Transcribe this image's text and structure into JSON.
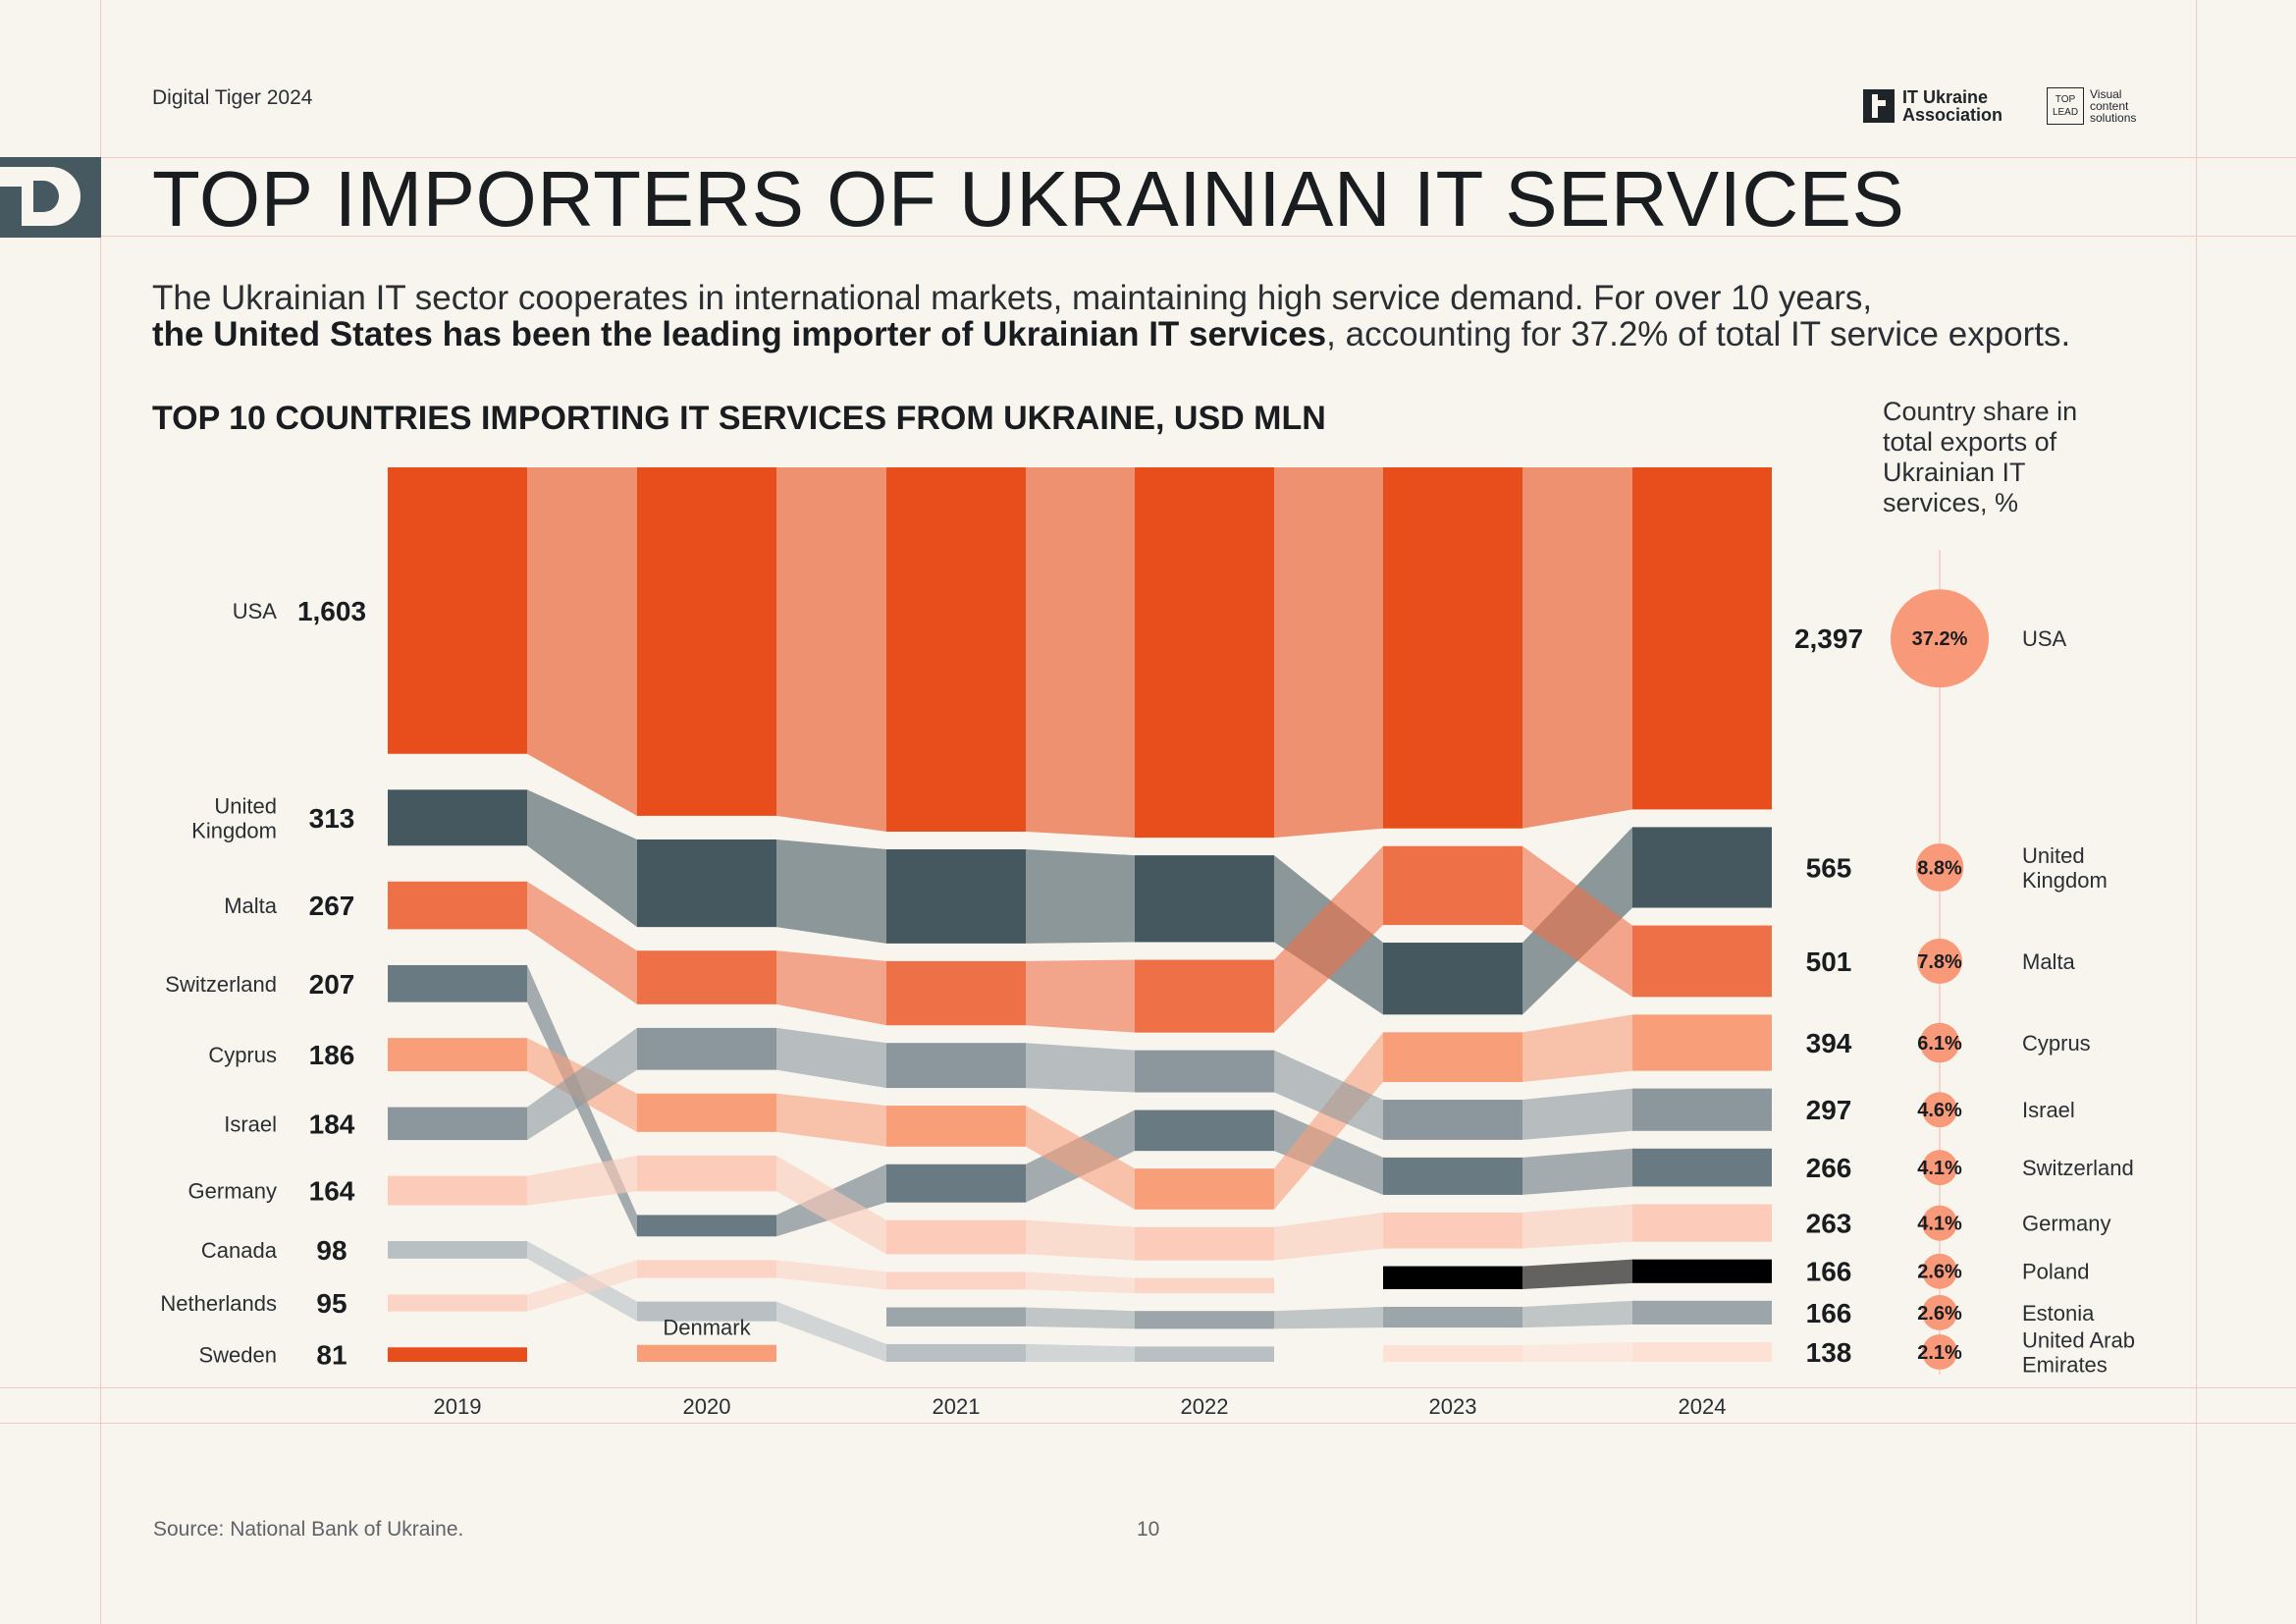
{
  "header": {
    "left_text": "Digital Tiger 2024",
    "itua_line1": "IT Ukraine",
    "itua_line2": "Association",
    "top_line1": "TOP",
    "top_line2": "LEAD",
    "top_desc1": "Visual",
    "top_desc2": "content",
    "top_desc3": "solutions"
  },
  "title": "TOP IMPORTERS OF UKRAINIAN IT SERVICES",
  "intro": {
    "line1": "The Ukrainian IT sector cooperates in international markets, maintaining high service demand. For over 10 years,",
    "bold": "the United States has been the leading importer of Ukrainian IT services",
    "tail": ", accounting for 37.2% of total IT service exports."
  },
  "footer": {
    "source": "Source: National Bank of Ukraine.",
    "page": "10"
  },
  "colors": {
    "usa": "#e84e1b",
    "uk": "#455860",
    "malta": "#ee7047",
    "cyprus": "#f89f79",
    "israel": "#8c979d",
    "switzerland": "#6a7a82",
    "germany": "#fccbb9",
    "poland": "#000000",
    "estonia": "#9ba5aa",
    "uae": "#fde1d5",
    "canada": "#b9c0c4",
    "netherlands": "#fbd4c5",
    "sweden": "#e84e1b",
    "denmark": "#f89f79",
    "bubble": "#f89a79"
  },
  "chart_data": {
    "type": "area",
    "title": "TOP 10 COUNTRIES IMPORTING IT SERVICES FROM UKRAINE, USD MLN",
    "x": [
      "2019",
      "2020",
      "2021",
      "2022",
      "2023",
      "2024"
    ],
    "start_labels": [
      {
        "country": "USA",
        "value": "1,603"
      },
      {
        "country": "United Kingdom",
        "value": "313"
      },
      {
        "country": "Malta",
        "value": "267"
      },
      {
        "country": "Switzerland",
        "value": "207"
      },
      {
        "country": "Cyprus",
        "value": "186"
      },
      {
        "country": "Israel",
        "value": "184"
      },
      {
        "country": "Germany",
        "value": "164"
      },
      {
        "country": "Canada",
        "value": "98"
      },
      {
        "country": "Netherlands",
        "value": "95"
      },
      {
        "country": "Sweden",
        "value": "81"
      }
    ],
    "end_labels": [
      {
        "country": "USA",
        "value": "2,397",
        "share": "37.2%"
      },
      {
        "country": "United Kingdom",
        "value": "565",
        "share": "8.8%"
      },
      {
        "country": "Malta",
        "value": "501",
        "share": "7.8%"
      },
      {
        "country": "Cyprus",
        "value": "394",
        "share": "6.1%"
      },
      {
        "country": "Israel",
        "value": "297",
        "share": "4.6%"
      },
      {
        "country": "Switzerland",
        "value": "266",
        "share": "4.1%"
      },
      {
        "country": "Germany",
        "value": "263",
        "share": "4.1%"
      },
      {
        "country": "Poland",
        "value": "166",
        "share": "2.6%"
      },
      {
        "country": "Estonia",
        "value": "166",
        "share": "2.6%"
      },
      {
        "country": "United Arab Emirates",
        "value": "138",
        "share": "2.1%"
      }
    ],
    "share_title": "Country share in total exports of Ukrainian IT services, %",
    "annotation": "Denmark",
    "series": [
      {
        "name": "USA",
        "color_key": "usa",
        "rank": [
          1,
          1,
          1,
          1,
          1,
          1
        ],
        "values": [
          1603,
          null,
          null,
          null,
          null,
          2397
        ]
      },
      {
        "name": "United Kingdom",
        "color_key": "uk",
        "rank": [
          2,
          2,
          2,
          2,
          3,
          2
        ],
        "values": [
          313,
          null,
          null,
          null,
          null,
          565
        ]
      },
      {
        "name": "Malta",
        "color_key": "malta",
        "rank": [
          3,
          3,
          3,
          3,
          2,
          3
        ],
        "values": [
          267,
          null,
          null,
          null,
          null,
          501
        ]
      },
      {
        "name": "Switzerland",
        "color_key": "switzerland",
        "rank": [
          4,
          7,
          6,
          5,
          6,
          6
        ],
        "values": [
          207,
          null,
          null,
          null,
          null,
          266
        ]
      },
      {
        "name": "Cyprus",
        "color_key": "cyprus",
        "rank": [
          5,
          5,
          5,
          6,
          4,
          4
        ],
        "values": [
          186,
          null,
          null,
          null,
          null,
          394
        ]
      },
      {
        "name": "Israel",
        "color_key": "israel",
        "rank": [
          6,
          4,
          4,
          4,
          5,
          5
        ],
        "values": [
          184,
          null,
          null,
          null,
          null,
          297
        ]
      },
      {
        "name": "Germany",
        "color_key": "germany",
        "rank": [
          7,
          6,
          7,
          7,
          7,
          7
        ],
        "values": [
          164,
          null,
          null,
          null,
          null,
          263
        ]
      },
      {
        "name": "Canada",
        "color_key": "canada",
        "rank": [
          8,
          9,
          10,
          10,
          null,
          null
        ],
        "values": [
          98,
          null,
          null,
          null,
          null,
          null
        ]
      },
      {
        "name": "Netherlands",
        "color_key": "netherlands",
        "rank": [
          9,
          8,
          8,
          8,
          null,
          null
        ],
        "values": [
          95,
          null,
          null,
          null,
          null,
          null
        ]
      },
      {
        "name": "Sweden",
        "color_key": "sweden",
        "rank": [
          10,
          null,
          null,
          null,
          null,
          null
        ],
        "values": [
          81,
          null,
          null,
          null,
          null,
          null
        ]
      },
      {
        "name": "Denmark",
        "color_key": "denmark",
        "rank": [
          null,
          10,
          null,
          null,
          null,
          null
        ],
        "values": [
          null,
          null,
          null,
          null,
          null,
          null
        ]
      },
      {
        "name": "Estonia",
        "color_key": "estonia",
        "rank": [
          null,
          null,
          9,
          9,
          9,
          9
        ],
        "values": [
          null,
          null,
          null,
          null,
          null,
          166
        ]
      },
      {
        "name": "Poland",
        "color_key": "poland",
        "rank": [
          null,
          null,
          null,
          null,
          8,
          8
        ],
        "values": [
          null,
          null,
          null,
          null,
          null,
          166
        ]
      },
      {
        "name": "United Arab Emirates",
        "color_key": "uae",
        "rank": [
          null,
          null,
          null,
          null,
          10,
          10
        ],
        "values": [
          null,
          null,
          null,
          null,
          null,
          138
        ]
      }
    ]
  }
}
